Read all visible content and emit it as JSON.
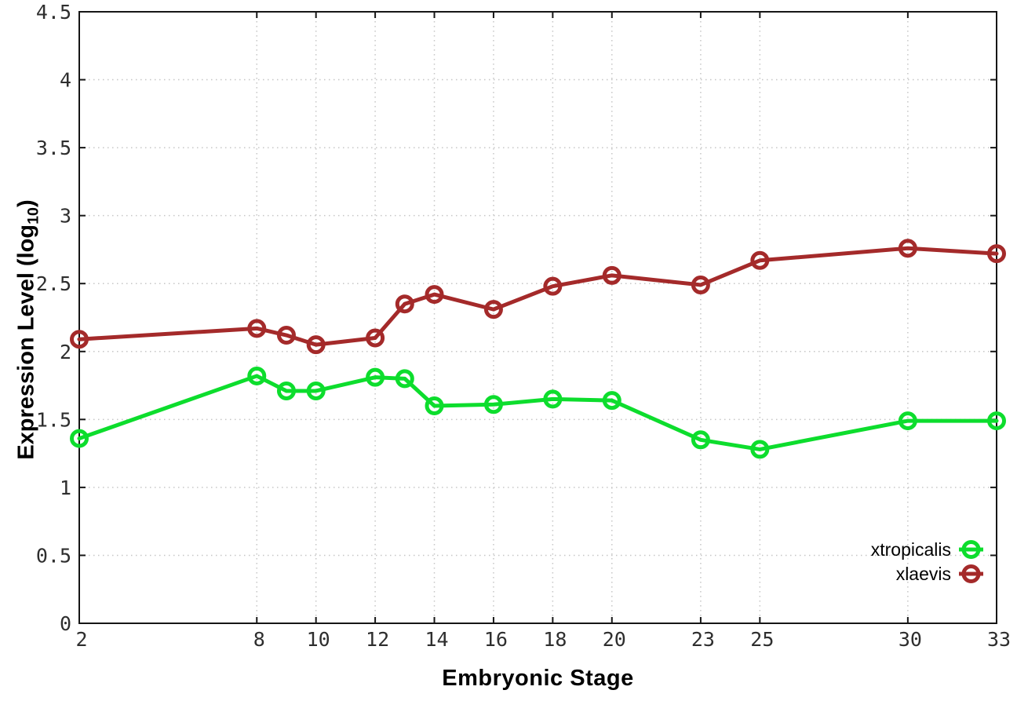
{
  "chart_data": {
    "type": "line",
    "x": [
      2,
      8,
      9,
      10,
      12,
      13,
      14,
      16,
      18,
      20,
      23,
      25,
      30,
      33
    ],
    "series": [
      {
        "name": "xtropicalis",
        "color": "#0ddd2d",
        "values": [
          1.36,
          1.82,
          1.71,
          1.71,
          1.81,
          1.8,
          1.6,
          1.61,
          1.65,
          1.64,
          1.35,
          1.28,
          1.49,
          1.49
        ]
      },
      {
        "name": "xlaevis",
        "color": "#a42a2a",
        "values": [
          2.09,
          2.17,
          2.12,
          2.05,
          2.1,
          2.35,
          2.42,
          2.31,
          2.48,
          2.56,
          2.49,
          2.67,
          2.76,
          2.72
        ]
      }
    ],
    "title": "",
    "xlabel": "Embryonic Stage",
    "ylabel": "Expression Level (log10)",
    "ylabel_parts": {
      "main": "Expression Level (log",
      "sub": "10",
      "close": ")"
    },
    "xlim": [
      2,
      33
    ],
    "ylim": [
      0,
      4.5
    ],
    "x_ticks": {
      "values": [
        2,
        8,
        10,
        12,
        14,
        16,
        18,
        20,
        23,
        25,
        30,
        33
      ],
      "labels": [
        "2",
        "8",
        "10",
        "12",
        "14",
        "16",
        "18",
        "20",
        "23",
        "25",
        "30",
        "33"
      ]
    },
    "y_ticks": {
      "values": [
        0,
        0.5,
        1,
        1.5,
        2,
        2.5,
        3,
        3.5,
        4,
        4.5
      ],
      "labels": [
        "0",
        "0.5",
        "1",
        "1.5",
        "2",
        "2.5",
        "3",
        "3.5",
        "4",
        "4.5"
      ]
    },
    "grid": true,
    "legend_position": "inside-bottom-right",
    "marker": "open-circle"
  },
  "colors": {
    "frame": "#161616",
    "grid": "#c6c6c6",
    "tick_text": "#2e2e2e",
    "xtropicalis": "#0ddd2d",
    "xlaevis": "#a42a2a"
  }
}
